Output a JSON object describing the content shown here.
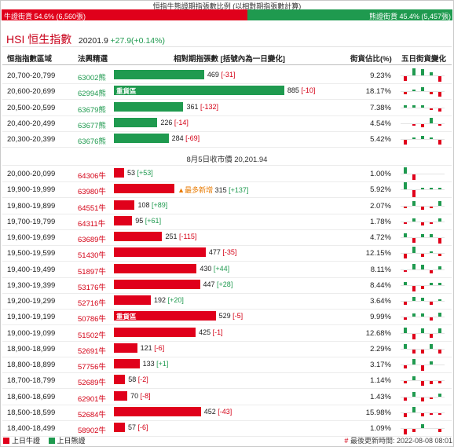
{
  "caption": "恒指牛熊證期指張數比例 (以相對期指張數計算)",
  "ratio": {
    "bull_label": "牛證街貨 54.6% (6,560張)",
    "bear_label": "熊證街貨 45.4% (5,457張)",
    "bull_share": 0.546
  },
  "hsi": {
    "name": "HSI 恒生指數",
    "value": "20201.9",
    "change": "+27.9(+0.14%)"
  },
  "headers": {
    "range": "恒指指數區域",
    "code": "法興精選",
    "rel": "相對期指張數 [括號內為一日變化]",
    "share": "街貨佔比(%)",
    "five": "五日街貨變化"
  },
  "close_note": "8月5日收市價 20,201.94",
  "heavy_tag": "重貨區",
  "new_tag": "▲最多新增",
  "bear_rows": [
    {
      "range": "20,700-20,799",
      "code": "63002熊",
      "value": "469",
      "change": "[-31]",
      "dir": "neg",
      "pct": "9.23%",
      "spark": [
        -3,
        8,
        5,
        2,
        -4
      ]
    },
    {
      "range": "20,600-20,699",
      "code": "62994熊",
      "value": "885",
      "change": "[-10]",
      "dir": "neg",
      "pct": "18.17%",
      "spark": [
        -1,
        1,
        3,
        -1,
        -3
      ],
      "tag": "heavy"
    },
    {
      "range": "20,500-20,599",
      "code": "63679熊",
      "value": "361",
      "change": "[-132]",
      "dir": "neg",
      "pct": "7.38%",
      "spark": [
        1,
        1,
        1,
        -1,
        -2
      ]
    },
    {
      "range": "20,400-20,499",
      "code": "63677熊",
      "value": "226",
      "change": "[-14]",
      "dir": "neg",
      "pct": "4.54%",
      "spark": [
        0,
        -1,
        -2,
        4,
        -1
      ]
    },
    {
      "range": "20,300-20,399",
      "code": "63676熊",
      "value": "284",
      "change": "[-69]",
      "dir": "neg",
      "pct": "5.42%",
      "spark": [
        -3,
        1,
        2,
        1,
        -3
      ]
    }
  ],
  "bull_rows": [
    {
      "range": "20,000-20,099",
      "code": "64306牛",
      "value": "53",
      "change": "[+53]",
      "dir": "pos",
      "pct": "1.00%",
      "spark": [
        5,
        -4,
        0,
        0,
        0
      ]
    },
    {
      "range": "19,900-19,999",
      "code": "63980牛",
      "value": "315",
      "change": "[+137]",
      "dir": "pos",
      "pct": "5.92%",
      "spark": [
        7,
        -6,
        1,
        1,
        1
      ],
      "tag": "new"
    },
    {
      "range": "19,800-19,899",
      "code": "64551牛",
      "value": "108",
      "change": "[+89]",
      "dir": "pos",
      "pct": "2.07%",
      "spark": [
        -1,
        3,
        -2,
        -1,
        3
      ]
    },
    {
      "range": "19,700-19,799",
      "code": "64311牛",
      "value": "95",
      "change": "[+61]",
      "dir": "pos",
      "pct": "1.78%",
      "spark": [
        -1,
        2,
        -2,
        -1,
        2
      ]
    },
    {
      "range": "19,600-19,699",
      "code": "63689牛",
      "value": "251",
      "change": "[-115]",
      "dir": "neg",
      "pct": "4.72%",
      "spark": [
        3,
        -3,
        2,
        2,
        -4
      ]
    },
    {
      "range": "19,500-19,599",
      "code": "51430牛",
      "value": "477",
      "change": "[-35]",
      "dir": "neg",
      "pct": "12.15%",
      "spark": [
        -3,
        5,
        -2,
        1,
        -1
      ]
    },
    {
      "range": "19,400-19,499",
      "code": "51897牛",
      "value": "430",
      "change": "[+44]",
      "dir": "pos",
      "pct": "8.11%",
      "spark": [
        -1,
        4,
        3,
        -2,
        2
      ]
    },
    {
      "range": "19,300-19,399",
      "code": "53176牛",
      "value": "447",
      "change": "[+28]",
      "dir": "pos",
      "pct": "8.44%",
      "spark": [
        2,
        -4,
        -2,
        1,
        1
      ]
    },
    {
      "range": "19,200-19,299",
      "code": "52716牛",
      "value": "192",
      "change": "[+20]",
      "dir": "pos",
      "pct": "3.64%",
      "spark": [
        -2,
        3,
        2,
        -2,
        1
      ]
    },
    {
      "range": "19,100-19,199",
      "code": "50786牛",
      "value": "529",
      "change": "[-5]",
      "dir": "neg",
      "pct": "9.99%",
      "spark": [
        -1,
        2,
        2,
        -2,
        3
      ],
      "tag": "heavy"
    },
    {
      "range": "19,000-19,099",
      "code": "51502牛",
      "value": "425",
      "change": "[-1]",
      "dir": "neg",
      "pct": "12.68%",
      "spark": [
        4,
        -4,
        3,
        -3,
        3
      ]
    },
    {
      "range": "18,900-18,999",
      "code": "52691牛",
      "value": "121",
      "change": "[-6]",
      "dir": "neg",
      "pct": "2.29%",
      "spark": [
        3,
        -3,
        -3,
        3,
        -3
      ]
    },
    {
      "range": "18,800-18,899",
      "code": "57756牛",
      "value": "133",
      "change": "[+1]",
      "dir": "pos",
      "pct": "3.17%",
      "spark": [
        -2,
        4,
        -4,
        2,
        0
      ]
    },
    {
      "range": "18,700-18,799",
      "code": "52689牛",
      "value": "58",
      "change": "[-2]",
      "dir": "neg",
      "pct": "1.14%",
      "spark": [
        -1,
        3,
        -3,
        -2,
        -1
      ]
    },
    {
      "range": "18,600-18,699",
      "code": "62901牛",
      "value": "70",
      "change": "[-8]",
      "dir": "neg",
      "pct": "1.43%",
      "spark": [
        -2,
        3,
        -3,
        -1,
        2
      ]
    },
    {
      "range": "18,500-18,599",
      "code": "52684牛",
      "value": "452",
      "change": "[-43]",
      "dir": "neg",
      "pct": "15.98%",
      "spark": [
        -3,
        4,
        -2,
        -1,
        -1
      ]
    },
    {
      "range": "18,400-18,499",
      "code": "58902牛",
      "value": "57",
      "change": "[-6]",
      "dir": "neg",
      "pct": "1.09%",
      "spark": [
        -4,
        -2,
        3,
        0,
        -2
      ]
    }
  ],
  "legend": {
    "bull": "上日牛證",
    "bear": "上日熊證"
  },
  "updated": "最後更新時間: 2022-08-08 08:01",
  "colors": {
    "bull": "#e0001b",
    "bear": "#1f9a4f",
    "title": "#c8001a"
  }
}
